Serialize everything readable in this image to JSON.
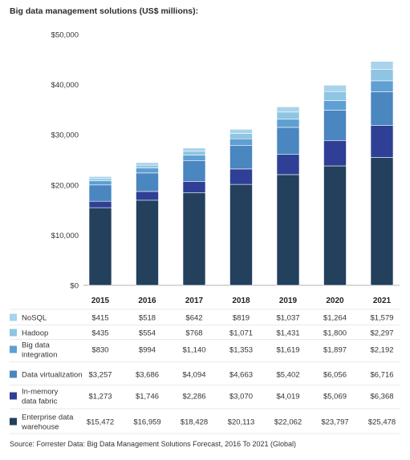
{
  "title": "Big data management solutions (US$ millions):",
  "source": "Source: Forrester Data: Big Data Management Solutions Forecast, 2016 To 2021 (Global)",
  "chart_data": {
    "type": "bar",
    "stacked": true,
    "title": "Big data management solutions (US$ millions):",
    "categories": [
      "2015",
      "2016",
      "2017",
      "2018",
      "2019",
      "2020",
      "2021"
    ],
    "ylim": [
      0,
      50000
    ],
    "yticks": [
      0,
      10000,
      20000,
      30000,
      40000,
      50000
    ],
    "ytick_labels": [
      "$0",
      "$10,000",
      "$20,000",
      "$30,000",
      "$40,000",
      "$50,000"
    ],
    "grid": false,
    "series": [
      {
        "name": "Enterprise data warehouse",
        "label_lines": [
          "Enterprise data",
          "warehouse"
        ],
        "color": "#23405d",
        "values": [
          15472,
          16959,
          18428,
          20113,
          22062,
          23797,
          25478
        ],
        "labels": [
          "$15,472",
          "$16,959",
          "$18,428",
          "$20,113",
          "$22,062",
          "$23,797",
          "$25,478"
        ]
      },
      {
        "name": "In-memory data fabric",
        "label_lines": [
          "In-memory",
          "data fabric"
        ],
        "color": "#2e3f95",
        "values": [
          1273,
          1746,
          2286,
          3070,
          4019,
          5069,
          6368
        ],
        "labels": [
          "$1,273",
          "$1,746",
          "$2,286",
          "$3,070",
          "$4,019",
          "$5,069",
          "$6,368"
        ]
      },
      {
        "name": "Data virtualization",
        "label_lines": [
          "Data virtualization"
        ],
        "color": "#4a86bf",
        "values": [
          3257,
          3686,
          4094,
          4663,
          5402,
          6056,
          6716
        ],
        "labels": [
          "$3,257",
          "$3,686",
          "$4,094",
          "$4,663",
          "$5,402",
          "$6,056",
          "$6,716"
        ]
      },
      {
        "name": "Big data integration",
        "label_lines": [
          "Big data",
          "integration"
        ],
        "color": "#5f9fd3",
        "values": [
          830,
          994,
          1140,
          1353,
          1619,
          1897,
          2192
        ],
        "labels": [
          "$830",
          "$994",
          "$1,140",
          "$1,353",
          "$1,619",
          "$1,897",
          "$2,192"
        ]
      },
      {
        "name": "Hadoop",
        "label_lines": [
          "Hadoop"
        ],
        "color": "#8ec5e3",
        "values": [
          435,
          554,
          768,
          1071,
          1431,
          1800,
          2297
        ],
        "labels": [
          "$435",
          "$554",
          "$768",
          "$1,071",
          "$1,431",
          "$1,800",
          "$2,297"
        ]
      },
      {
        "name": "NoSQL",
        "label_lines": [
          "NoSQL"
        ],
        "color": "#a8d3ea",
        "values": [
          415,
          518,
          642,
          819,
          1037,
          1264,
          1579
        ],
        "labels": [
          "$415",
          "$518",
          "$642",
          "$819",
          "$1,037",
          "$1,264",
          "$1,579"
        ]
      }
    ]
  }
}
